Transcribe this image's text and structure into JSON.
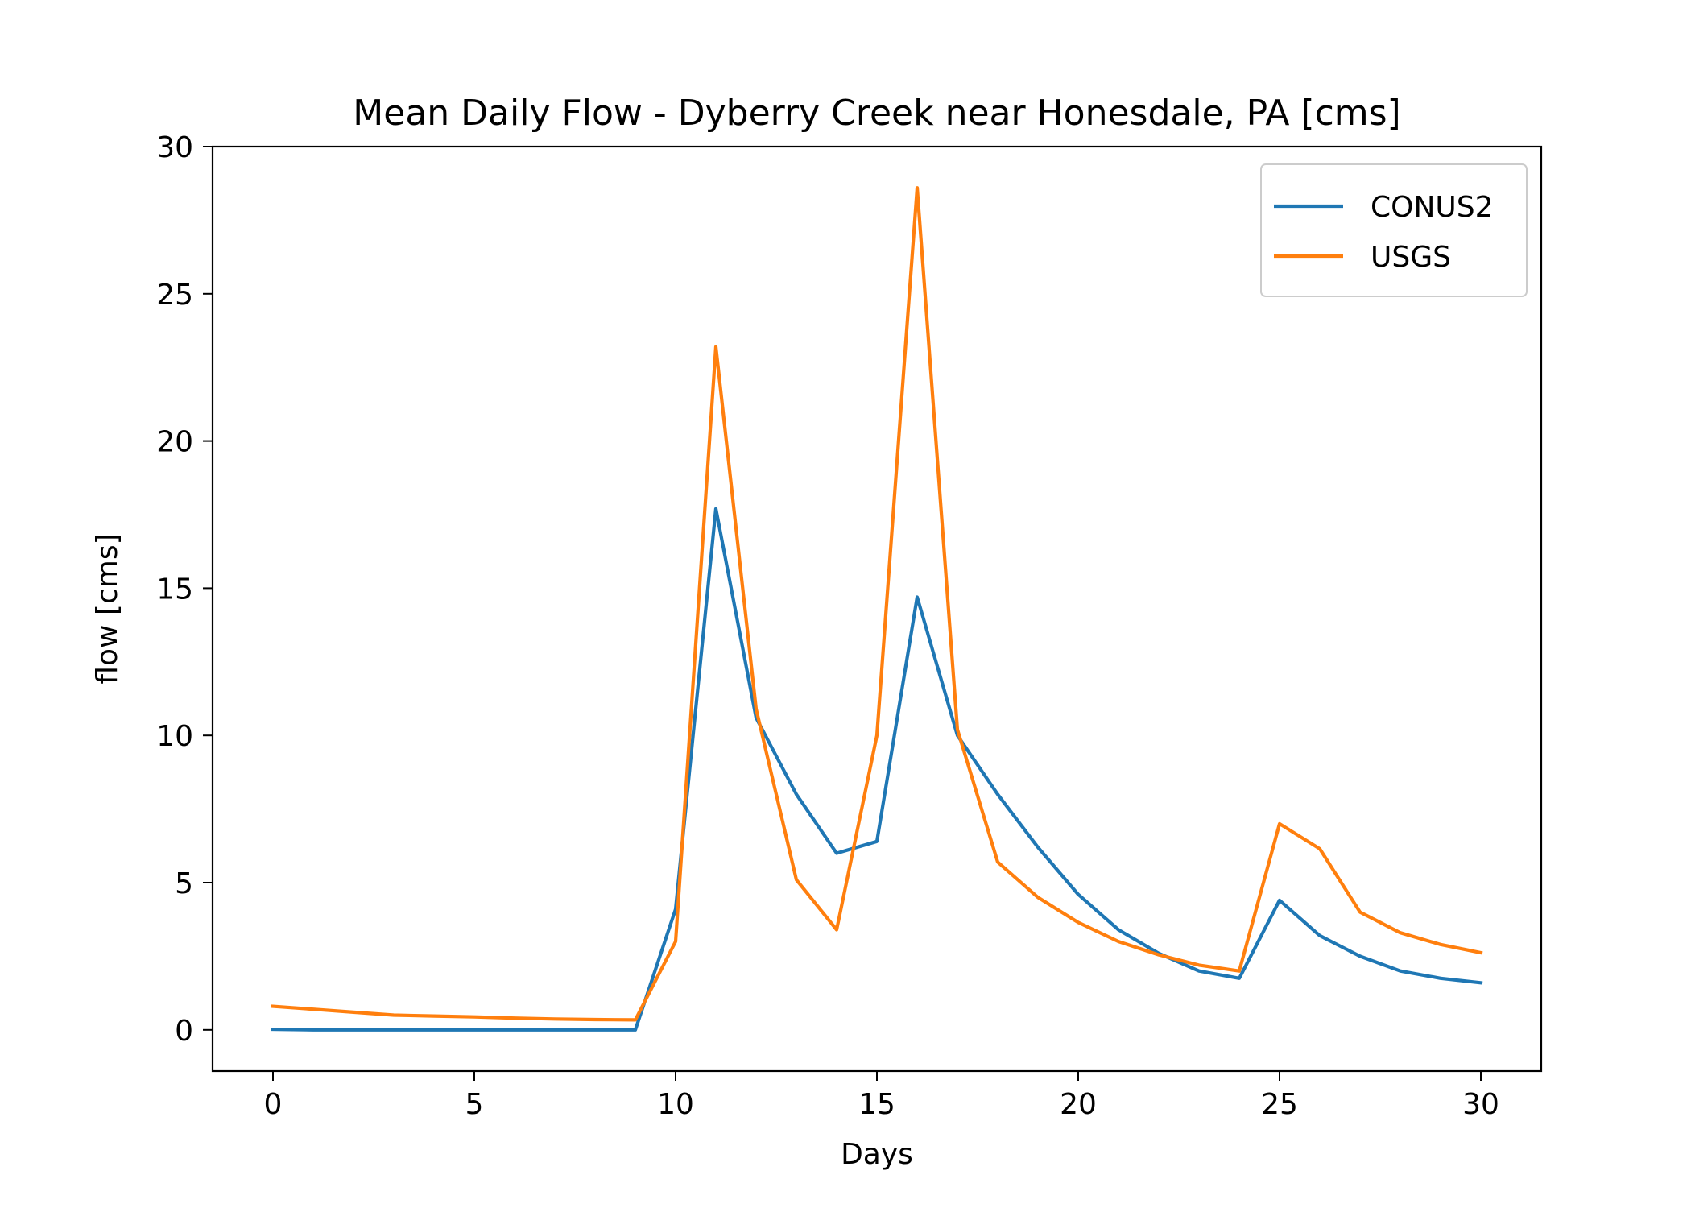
{
  "chart_data": {
    "type": "line",
    "title": "Mean Daily Flow - Dyberry Creek near Honesdale, PA [cms]",
    "xlabel": "Days",
    "ylabel": "flow [cms]",
    "xlim": [
      -1.5,
      31.5
    ],
    "ylim": [
      -1.4,
      30
    ],
    "xticks": [
      0,
      5,
      10,
      15,
      20,
      25,
      30
    ],
    "yticks": [
      0,
      5,
      10,
      15,
      20,
      25,
      30
    ],
    "grid": false,
    "legend_position": "top-right",
    "x": [
      0,
      1,
      2,
      3,
      4,
      5,
      6,
      7,
      8,
      9,
      10,
      11,
      12,
      13,
      14,
      15,
      16,
      17,
      18,
      19,
      20,
      21,
      22,
      23,
      24,
      25,
      26,
      27,
      28,
      29,
      30
    ],
    "series": [
      {
        "name": "CONUS2",
        "color": "#1f77b4",
        "values": [
          0.02,
          0.0,
          0.0,
          0.0,
          0.0,
          0.0,
          0.0,
          0.0,
          0.0,
          0.0,
          4.1,
          17.7,
          10.6,
          8.0,
          6.0,
          6.4,
          14.7,
          10.0,
          8.0,
          6.2,
          4.6,
          3.4,
          2.6,
          2.0,
          1.75,
          4.4,
          3.2,
          2.5,
          2.0,
          1.75,
          1.6
        ]
      },
      {
        "name": "USGS",
        "color": "#ff7f0e",
        "values": [
          0.8,
          0.7,
          0.6,
          0.5,
          0.47,
          0.44,
          0.4,
          0.37,
          0.35,
          0.34,
          3.0,
          23.2,
          10.9,
          5.1,
          3.4,
          10.0,
          28.6,
          10.2,
          5.7,
          4.5,
          3.65,
          3.0,
          2.55,
          2.2,
          2.0,
          7.0,
          6.15,
          4.0,
          3.3,
          2.9,
          2.62
        ]
      }
    ]
  }
}
